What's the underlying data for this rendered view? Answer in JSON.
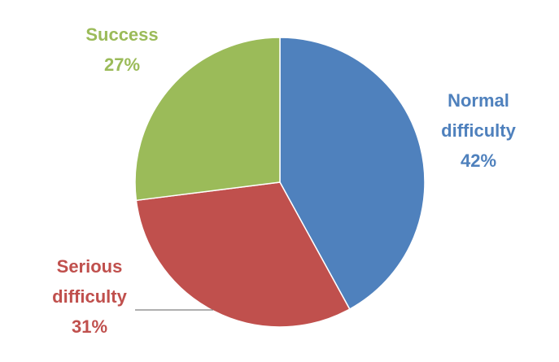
{
  "chart_data": {
    "type": "pie",
    "title": "",
    "slices": [
      {
        "label_lines": [
          "Normal",
          "difficulty"
        ],
        "value": 42,
        "value_label": "42%",
        "color": "#4F81BD"
      },
      {
        "label_lines": [
          "Serious",
          "difficulty"
        ],
        "value": 31,
        "value_label": "31%",
        "color": "#C0504D"
      },
      {
        "label_lines": [
          "Success"
        ],
        "value": 27,
        "value_label": "27%",
        "color": "#9BBB59"
      }
    ],
    "start_angle_deg": 0,
    "direction": "clockwise",
    "legend": "none",
    "leader_line_color": "#7F7F7F"
  }
}
